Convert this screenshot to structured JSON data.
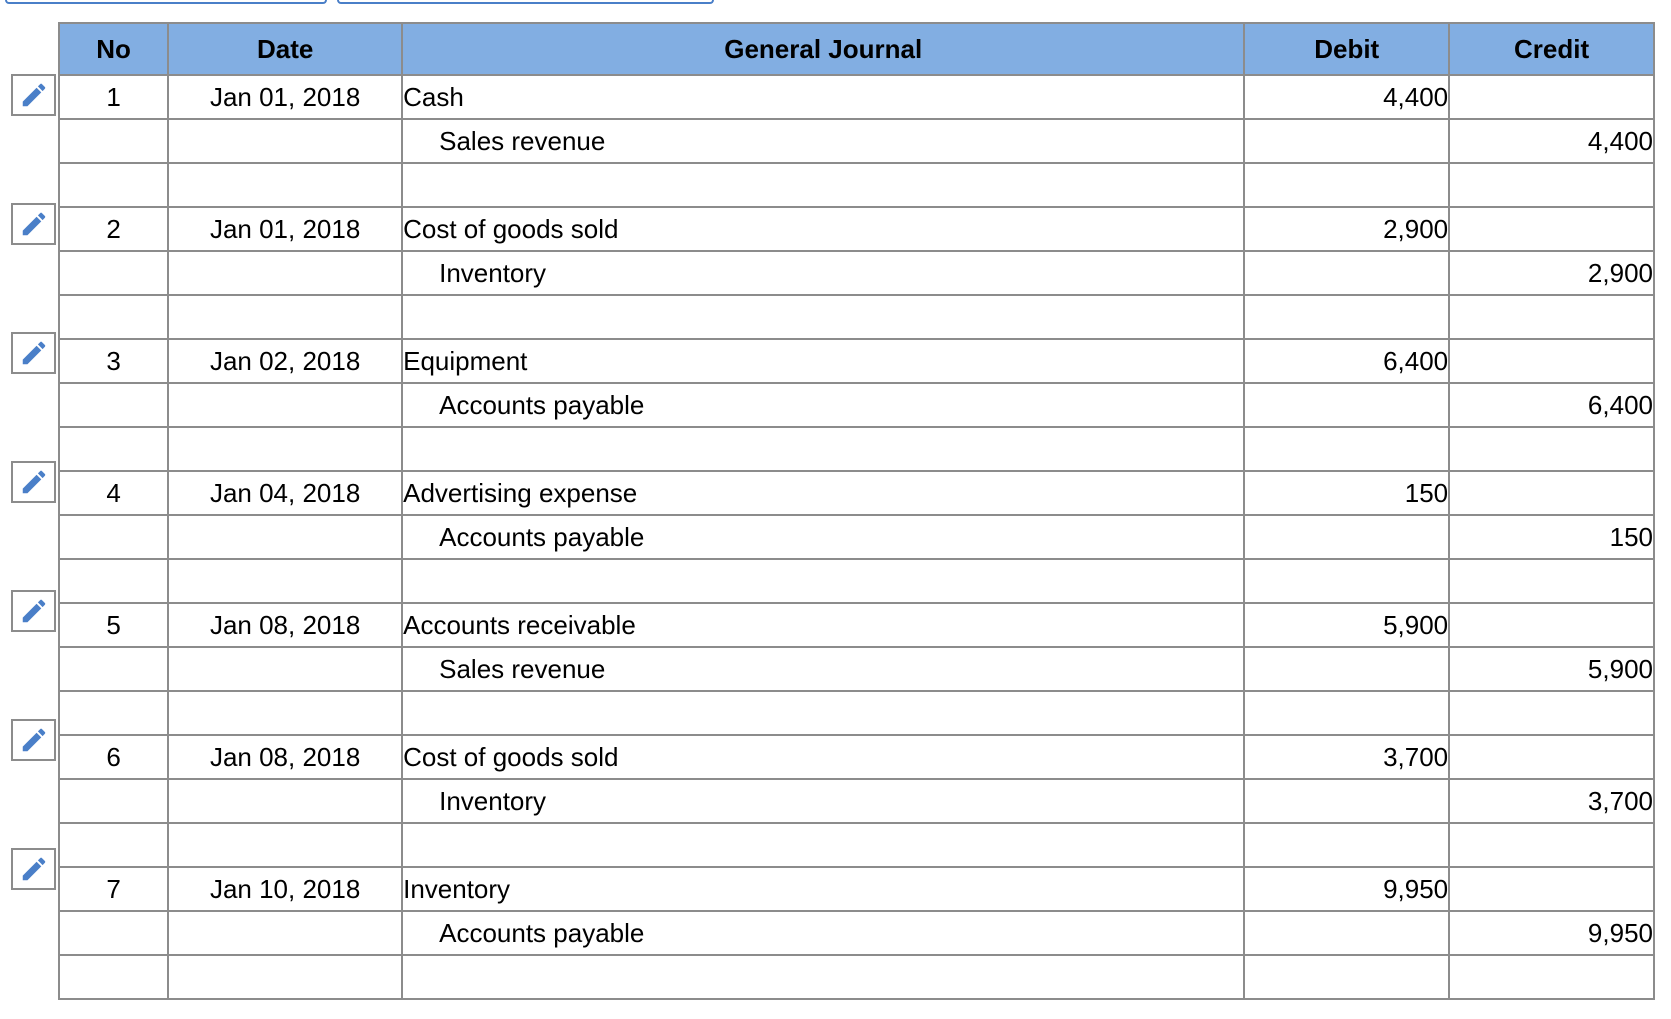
{
  "columns": {
    "no": "No",
    "date": "Date",
    "journal": "General Journal",
    "debit": "Debit",
    "credit": "Credit"
  },
  "edit_icon": "pencil-icon",
  "accent_color": "#82aee2",
  "entries": [
    {
      "no": "1",
      "date": "Jan 01, 2018",
      "debit_account": "Cash",
      "debit": "4,400",
      "credit_account": "Sales revenue",
      "credit": "4,400"
    },
    {
      "no": "2",
      "date": "Jan 01, 2018",
      "debit_account": "Cost of goods sold",
      "debit": "2,900",
      "credit_account": "Inventory",
      "credit": "2,900"
    },
    {
      "no": "3",
      "date": "Jan 02, 2018",
      "debit_account": "Equipment",
      "debit": "6,400",
      "credit_account": "Accounts payable",
      "credit": "6,400"
    },
    {
      "no": "4",
      "date": "Jan 04, 2018",
      "debit_account": "Advertising expense",
      "debit": "150",
      "credit_account": "Accounts payable",
      "credit": "150"
    },
    {
      "no": "5",
      "date": "Jan 08, 2018",
      "debit_account": "Accounts receivable",
      "debit": "5,900",
      "credit_account": "Sales revenue",
      "credit": "5,900"
    },
    {
      "no": "6",
      "date": "Jan 08, 2018",
      "debit_account": "Cost of goods sold",
      "debit": "3,700",
      "credit_account": "Inventory",
      "credit": "3,700"
    },
    {
      "no": "7",
      "date": "Jan 10, 2018",
      "debit_account": "Inventory",
      "debit": "9,950",
      "credit_account": "Accounts payable",
      "credit": "9,950"
    }
  ]
}
